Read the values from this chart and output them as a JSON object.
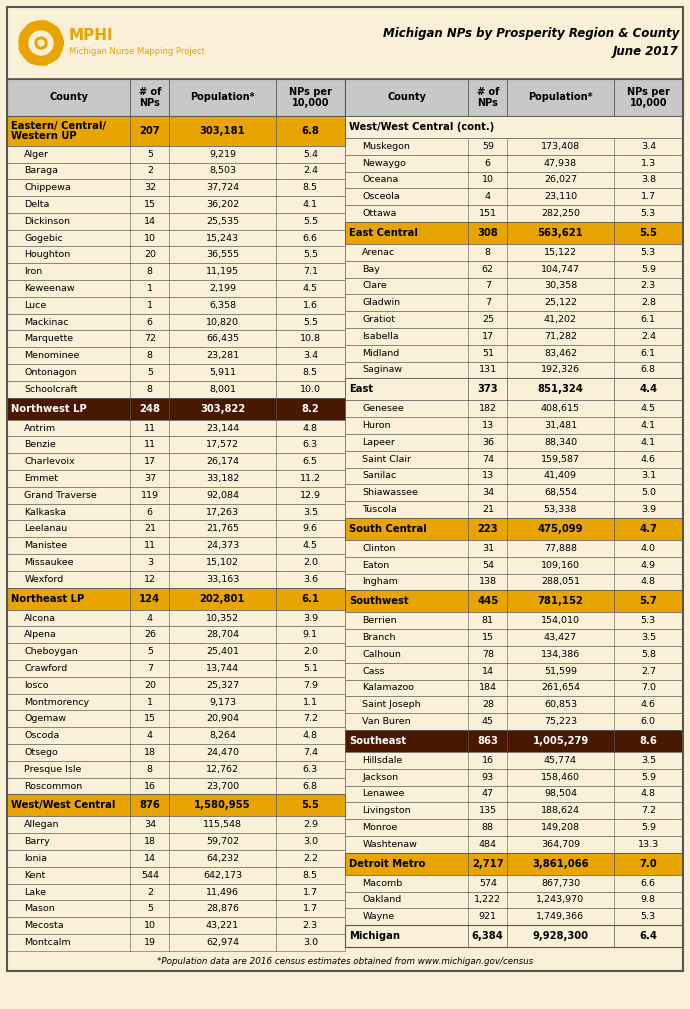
{
  "title_main": "Michigan NPs by Prosperity Region & County",
  "title_sub": "June 2017",
  "footnote": "*Population data are 2016 census estimates obtained from www.michigan.gov/census",
  "cream_bg": "#faf0d7",
  "header_bg": "#c8c8c8",
  "gold_bg": "#e8a400",
  "brown_bg": "#4a1800",
  "border_col": "#555555",
  "left_data": [
    {
      "type": "region",
      "color": "gold",
      "name": "Eastern/ Central/\nWestern UP",
      "nps": "207",
      "pop": "303,181",
      "per": "6.8"
    },
    {
      "type": "county",
      "name": "Alger",
      "nps": "5",
      "pop": "9,219",
      "per": "5.4"
    },
    {
      "type": "county",
      "name": "Baraga",
      "nps": "2",
      "pop": "8,503",
      "per": "2.4"
    },
    {
      "type": "county",
      "name": "Chippewa",
      "nps": "32",
      "pop": "37,724",
      "per": "8.5"
    },
    {
      "type": "county",
      "name": "Delta",
      "nps": "15",
      "pop": "36,202",
      "per": "4.1"
    },
    {
      "type": "county",
      "name": "Dickinson",
      "nps": "14",
      "pop": "25,535",
      "per": "5.5"
    },
    {
      "type": "county",
      "name": "Gogebic",
      "nps": "10",
      "pop": "15,243",
      "per": "6.6"
    },
    {
      "type": "county",
      "name": "Houghton",
      "nps": "20",
      "pop": "36,555",
      "per": "5.5"
    },
    {
      "type": "county",
      "name": "Iron",
      "nps": "8",
      "pop": "11,195",
      "per": "7.1"
    },
    {
      "type": "county",
      "name": "Keweenaw",
      "nps": "1",
      "pop": "2,199",
      "per": "4.5"
    },
    {
      "type": "county",
      "name": "Luce",
      "nps": "1",
      "pop": "6,358",
      "per": "1.6"
    },
    {
      "type": "county",
      "name": "Mackinac",
      "nps": "6",
      "pop": "10,820",
      "per": "5.5"
    },
    {
      "type": "county",
      "name": "Marquette",
      "nps": "72",
      "pop": "66,435",
      "per": "10.8"
    },
    {
      "type": "county",
      "name": "Menominee",
      "nps": "8",
      "pop": "23,281",
      "per": "3.4"
    },
    {
      "type": "county",
      "name": "Ontonagon",
      "nps": "5",
      "pop": "5,911",
      "per": "8.5"
    },
    {
      "type": "county",
      "name": "Schoolcraft",
      "nps": "8",
      "pop": "8,001",
      "per": "10.0"
    },
    {
      "type": "region",
      "color": "brown",
      "name": "Northwest LP",
      "nps": "248",
      "pop": "303,822",
      "per": "8.2"
    },
    {
      "type": "county",
      "name": "Antrim",
      "nps": "11",
      "pop": "23,144",
      "per": "4.8"
    },
    {
      "type": "county",
      "name": "Benzie",
      "nps": "11",
      "pop": "17,572",
      "per": "6.3"
    },
    {
      "type": "county",
      "name": "Charlevoix",
      "nps": "17",
      "pop": "26,174",
      "per": "6.5"
    },
    {
      "type": "county",
      "name": "Emmet",
      "nps": "37",
      "pop": "33,182",
      "per": "11.2"
    },
    {
      "type": "county",
      "name": "Grand Traverse",
      "nps": "119",
      "pop": "92,084",
      "per": "12.9"
    },
    {
      "type": "county",
      "name": "Kalkaska",
      "nps": "6",
      "pop": "17,263",
      "per": "3.5"
    },
    {
      "type": "county",
      "name": "Leelanau",
      "nps": "21",
      "pop": "21,765",
      "per": "9.6"
    },
    {
      "type": "county",
      "name": "Manistee",
      "nps": "11",
      "pop": "24,373",
      "per": "4.5"
    },
    {
      "type": "county",
      "name": "Missaukee",
      "nps": "3",
      "pop": "15,102",
      "per": "2.0"
    },
    {
      "type": "county",
      "name": "Wexford",
      "nps": "12",
      "pop": "33,163",
      "per": "3.6"
    },
    {
      "type": "region",
      "color": "gold",
      "name": "Northeast LP",
      "nps": "124",
      "pop": "202,801",
      "per": "6.1"
    },
    {
      "type": "county",
      "name": "Alcona",
      "nps": "4",
      "pop": "10,352",
      "per": "3.9"
    },
    {
      "type": "county",
      "name": "Alpena",
      "nps": "26",
      "pop": "28,704",
      "per": "9.1"
    },
    {
      "type": "county",
      "name": "Cheboygan",
      "nps": "5",
      "pop": "25,401",
      "per": "2.0"
    },
    {
      "type": "county",
      "name": "Crawford",
      "nps": "7",
      "pop": "13,744",
      "per": "5.1"
    },
    {
      "type": "county",
      "name": "Iosco",
      "nps": "20",
      "pop": "25,327",
      "per": "7.9"
    },
    {
      "type": "county",
      "name": "Montmorency",
      "nps": "1",
      "pop": "9,173",
      "per": "1.1"
    },
    {
      "type": "county",
      "name": "Ogemaw",
      "nps": "15",
      "pop": "20,904",
      "per": "7.2"
    },
    {
      "type": "county",
      "name": "Oscoda",
      "nps": "4",
      "pop": "8,264",
      "per": "4.8"
    },
    {
      "type": "county",
      "name": "Otsego",
      "nps": "18",
      "pop": "24,470",
      "per": "7.4"
    },
    {
      "type": "county",
      "name": "Presque Isle",
      "nps": "8",
      "pop": "12,762",
      "per": "6.3"
    },
    {
      "type": "county",
      "name": "Roscommon",
      "nps": "16",
      "pop": "23,700",
      "per": "6.8"
    },
    {
      "type": "region",
      "color": "gold",
      "name": "West/West Central",
      "nps": "876",
      "pop": "1,580,955",
      "per": "5.5"
    },
    {
      "type": "county",
      "name": "Allegan",
      "nps": "34",
      "pop": "115,548",
      "per": "2.9"
    },
    {
      "type": "county",
      "name": "Barry",
      "nps": "18",
      "pop": "59,702",
      "per": "3.0"
    },
    {
      "type": "county",
      "name": "Ionia",
      "nps": "14",
      "pop": "64,232",
      "per": "2.2"
    },
    {
      "type": "county",
      "name": "Kent",
      "nps": "544",
      "pop": "642,173",
      "per": "8.5"
    },
    {
      "type": "county",
      "name": "Lake",
      "nps": "2",
      "pop": "11,496",
      "per": "1.7"
    },
    {
      "type": "county",
      "name": "Mason",
      "nps": "5",
      "pop": "28,876",
      "per": "1.7"
    },
    {
      "type": "county",
      "name": "Mecosta",
      "nps": "10",
      "pop": "43,221",
      "per": "2.3"
    },
    {
      "type": "county",
      "name": "Montcalm",
      "nps": "19",
      "pop": "62,974",
      "per": "3.0"
    }
  ],
  "right_data": [
    {
      "type": "region_cont",
      "name": "West/West Central (cont.)",
      "nps": "",
      "pop": "",
      "per": ""
    },
    {
      "type": "county",
      "name": "Muskegon",
      "nps": "59",
      "pop": "173,408",
      "per": "3.4"
    },
    {
      "type": "county",
      "name": "Newaygo",
      "nps": "6",
      "pop": "47,938",
      "per": "1.3"
    },
    {
      "type": "county",
      "name": "Oceana",
      "nps": "10",
      "pop": "26,027",
      "per": "3.8"
    },
    {
      "type": "county",
      "name": "Osceola",
      "nps": "4",
      "pop": "23,110",
      "per": "1.7"
    },
    {
      "type": "county",
      "name": "Ottawa",
      "nps": "151",
      "pop": "282,250",
      "per": "5.3"
    },
    {
      "type": "region",
      "color": "gold",
      "name": "East Central",
      "nps": "308",
      "pop": "563,621",
      "per": "5.5"
    },
    {
      "type": "county",
      "name": "Arenac",
      "nps": "8",
      "pop": "15,122",
      "per": "5.3"
    },
    {
      "type": "county",
      "name": "Bay",
      "nps": "62",
      "pop": "104,747",
      "per": "5.9"
    },
    {
      "type": "county",
      "name": "Clare",
      "nps": "7",
      "pop": "30,358",
      "per": "2.3"
    },
    {
      "type": "county",
      "name": "Gladwin",
      "nps": "7",
      "pop": "25,122",
      "per": "2.8"
    },
    {
      "type": "county",
      "name": "Gratiot",
      "nps": "25",
      "pop": "41,202",
      "per": "6.1"
    },
    {
      "type": "county",
      "name": "Isabella",
      "nps": "17",
      "pop": "71,282",
      "per": "2.4"
    },
    {
      "type": "county",
      "name": "Midland",
      "nps": "51",
      "pop": "83,462",
      "per": "6.1"
    },
    {
      "type": "county",
      "name": "Saginaw",
      "nps": "131",
      "pop": "192,326",
      "per": "6.8"
    },
    {
      "type": "region",
      "color": "cream",
      "name": "East",
      "nps": "373",
      "pop": "851,324",
      "per": "4.4"
    },
    {
      "type": "county",
      "name": "Genesee",
      "nps": "182",
      "pop": "408,615",
      "per": "4.5"
    },
    {
      "type": "county",
      "name": "Huron",
      "nps": "13",
      "pop": "31,481",
      "per": "4.1"
    },
    {
      "type": "county",
      "name": "Lapeer",
      "nps": "36",
      "pop": "88,340",
      "per": "4.1"
    },
    {
      "type": "county",
      "name": "Saint Clair",
      "nps": "74",
      "pop": "159,587",
      "per": "4.6"
    },
    {
      "type": "county",
      "name": "Sanilac",
      "nps": "13",
      "pop": "41,409",
      "per": "3.1"
    },
    {
      "type": "county",
      "name": "Shiawassee",
      "nps": "34",
      "pop": "68,554",
      "per": "5.0"
    },
    {
      "type": "county",
      "name": "Tuscola",
      "nps": "21",
      "pop": "53,338",
      "per": "3.9"
    },
    {
      "type": "region",
      "color": "gold",
      "name": "South Central",
      "nps": "223",
      "pop": "475,099",
      "per": "4.7"
    },
    {
      "type": "county",
      "name": "Clinton",
      "nps": "31",
      "pop": "77,888",
      "per": "4.0"
    },
    {
      "type": "county",
      "name": "Eaton",
      "nps": "54",
      "pop": "109,160",
      "per": "4.9"
    },
    {
      "type": "county",
      "name": "Ingham",
      "nps": "138",
      "pop": "288,051",
      "per": "4.8"
    },
    {
      "type": "region",
      "color": "gold",
      "name": "Southwest",
      "nps": "445",
      "pop": "781,152",
      "per": "5.7"
    },
    {
      "type": "county",
      "name": "Berrien",
      "nps": "81",
      "pop": "154,010",
      "per": "5.3"
    },
    {
      "type": "county",
      "name": "Branch",
      "nps": "15",
      "pop": "43,427",
      "per": "3.5"
    },
    {
      "type": "county",
      "name": "Calhoun",
      "nps": "78",
      "pop": "134,386",
      "per": "5.8"
    },
    {
      "type": "county",
      "name": "Cass",
      "nps": "14",
      "pop": "51,599",
      "per": "2.7"
    },
    {
      "type": "county",
      "name": "Kalamazoo",
      "nps": "184",
      "pop": "261,654",
      "per": "7.0"
    },
    {
      "type": "county",
      "name": "Saint Joseph",
      "nps": "28",
      "pop": "60,853",
      "per": "4.6"
    },
    {
      "type": "county",
      "name": "Van Buren",
      "nps": "45",
      "pop": "75,223",
      "per": "6.0"
    },
    {
      "type": "region",
      "color": "brown",
      "name": "Southeast",
      "nps": "863",
      "pop": "1,005,279",
      "per": "8.6"
    },
    {
      "type": "county",
      "name": "Hillsdale",
      "nps": "16",
      "pop": "45,774",
      "per": "3.5"
    },
    {
      "type": "county",
      "name": "Jackson",
      "nps": "93",
      "pop": "158,460",
      "per": "5.9"
    },
    {
      "type": "county",
      "name": "Lenawee",
      "nps": "47",
      "pop": "98,504",
      "per": "4.8"
    },
    {
      "type": "county",
      "name": "Livingston",
      "nps": "135",
      "pop": "188,624",
      "per": "7.2"
    },
    {
      "type": "county",
      "name": "Monroe",
      "nps": "88",
      "pop": "149,208",
      "per": "5.9"
    },
    {
      "type": "county",
      "name": "Washtenaw",
      "nps": "484",
      "pop": "364,709",
      "per": "13.3"
    },
    {
      "type": "region",
      "color": "gold",
      "name": "Detroit Metro",
      "nps": "2,717",
      "pop": "3,861,066",
      "per": "7.0"
    },
    {
      "type": "county",
      "name": "Macomb",
      "nps": "574",
      "pop": "867,730",
      "per": "6.6"
    },
    {
      "type": "county",
      "name": "Oakland",
      "nps": "1,222",
      "pop": "1,243,970",
      "per": "9.8"
    },
    {
      "type": "county",
      "name": "Wayne",
      "nps": "921",
      "pop": "1,749,366",
      "per": "5.3"
    },
    {
      "type": "total",
      "name": "Michigan",
      "nps": "6,384",
      "pop": "9,928,300",
      "per": "6.4"
    }
  ]
}
